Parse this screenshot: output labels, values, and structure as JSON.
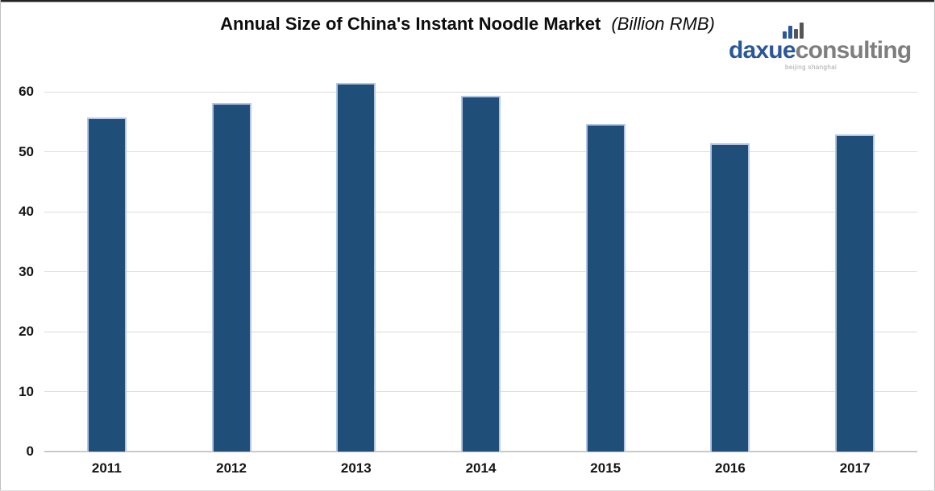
{
  "title": {
    "main": "Annual Size of China's Instant Noodle Market",
    "unit": "(Billion RMB)"
  },
  "logo": {
    "name_blue": "daxue",
    "name_gray": "consulting",
    "tagline": "beijing shanghai",
    "icon": "bar-chart-icon",
    "colors": {
      "blue": "#2B579A",
      "gray": "#7E7E7E",
      "tagline_gray": "#A8A8A8"
    }
  },
  "chart_data": {
    "type": "bar",
    "title": "Annual Size of China's Instant Noodle Market",
    "subtitle": "(Billion RMB)",
    "categories": [
      "2011",
      "2012",
      "2013",
      "2014",
      "2015",
      "2016",
      "2017"
    ],
    "values": [
      55.7,
      58.1,
      61.5,
      59.4,
      54.6,
      51.5,
      52.9
    ],
    "xlabel": "",
    "ylabel": "",
    "ylim": [
      0,
      65
    ],
    "yticks": [
      0,
      10,
      20,
      30,
      40,
      50,
      60
    ],
    "grid": true,
    "legend": false,
    "bar_color": "#1F4E79",
    "bar_border_color": "#B4C7E7",
    "gridline_color": "#DCDCDC",
    "axisline_color": "#C9C9C9"
  }
}
